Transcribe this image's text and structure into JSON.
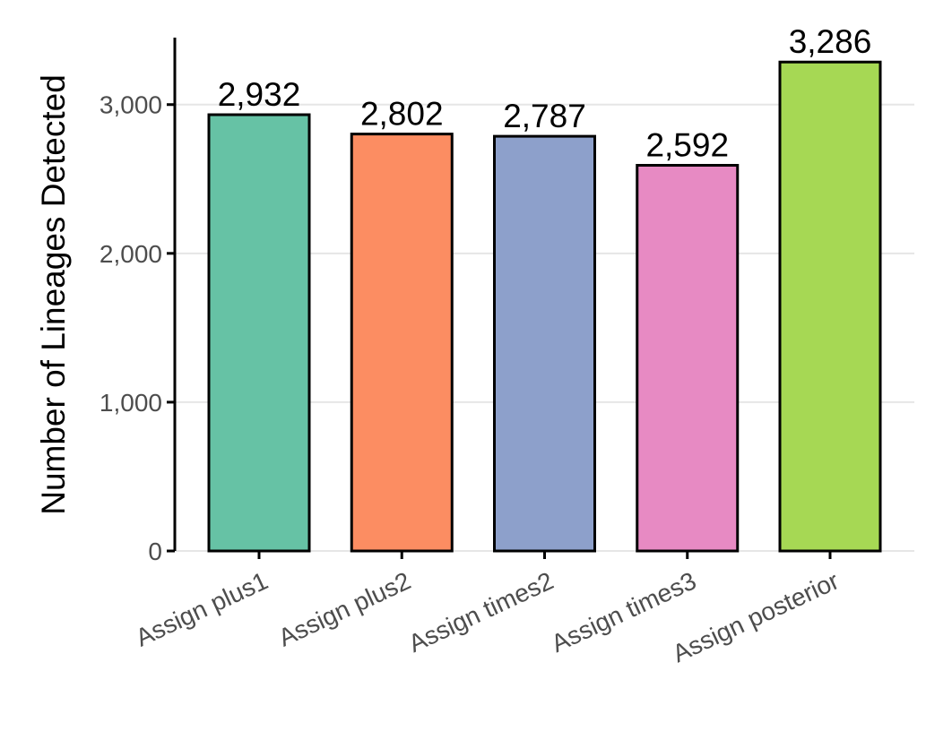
{
  "chart_data": {
    "type": "bar",
    "title": "",
    "xlabel": "",
    "ylabel": "Number of Lineages Detected",
    "categories": [
      "Assign plus1",
      "Assign plus2",
      "Assign times2",
      "Assign times3",
      "Assign posterior"
    ],
    "values": [
      2932,
      2802,
      2787,
      2592,
      3286
    ],
    "value_labels": [
      "2,932",
      "2,802",
      "2,787",
      "2,592",
      "3,286"
    ],
    "colors": [
      "#66c2a5",
      "#fc8d62",
      "#8da0cb",
      "#e78ac3",
      "#a6d854"
    ],
    "ylim": [
      0,
      3450
    ],
    "yticks": [
      0,
      1000,
      2000,
      3000
    ],
    "ytick_labels": [
      "0",
      "1,000",
      "2,000",
      "3,000"
    ],
    "grid": true,
    "legend": "none"
  }
}
